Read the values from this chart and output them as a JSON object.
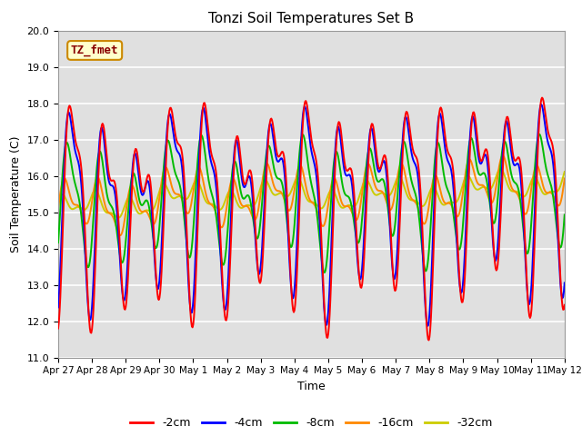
{
  "title": "Tonzi Soil Temperatures Set B",
  "xlabel": "Time",
  "ylabel": "Soil Temperature (C)",
  "ylim": [
    11.0,
    20.0
  ],
  "yticks": [
    11.0,
    12.0,
    13.0,
    14.0,
    15.0,
    16.0,
    17.0,
    18.0,
    19.0,
    20.0
  ],
  "background_color": "#e0e0e0",
  "annotation_label": "TZ_fmet",
  "annotation_bg": "#ffffcc",
  "annotation_border": "#cc8800",
  "annotation_text_color": "#880000",
  "line_colors": {
    "-2cm": "#ff0000",
    "-4cm": "#0000ff",
    "-8cm": "#00bb00",
    "-16cm": "#ff8800",
    "-32cm": "#cccc00"
  },
  "line_width": 1.4,
  "x_labels": [
    "Apr 27",
    "Apr 28",
    "Apr 29",
    "Apr 30",
    "May 1",
    "May 2",
    "May 3",
    "May 4",
    "May 5",
    "May 6",
    "May 7",
    "May 8",
    "May 9",
    "May 10",
    "May 11",
    "May 12"
  ],
  "n_points": 721,
  "x_start": 0,
  "x_end": 15,
  "xtick_positions": [
    0,
    1,
    2,
    3,
    4,
    5,
    6,
    7,
    8,
    9,
    10,
    11,
    12,
    13,
    14,
    15
  ],
  "legend_entries": [
    "-2cm",
    "-4cm",
    "-8cm",
    "-16cm",
    "-32cm"
  ]
}
